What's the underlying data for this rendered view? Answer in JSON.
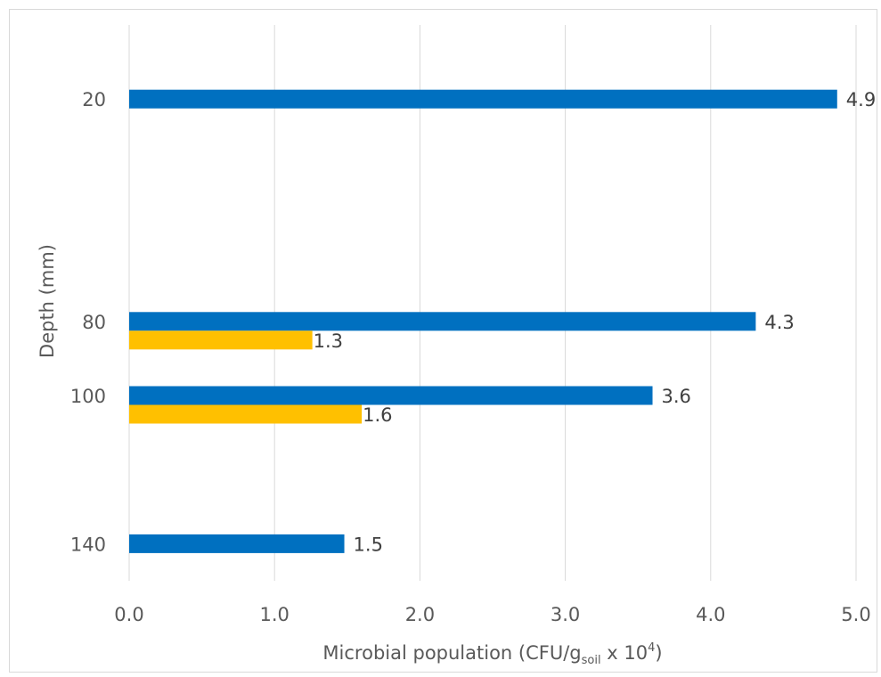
{
  "chart_data": {
    "type": "bar",
    "orientation": "horizontal",
    "x_axis": {
      "label_main": "Microbial population (CFU/g",
      "label_sub": "soil",
      "label_mid": " x 10",
      "label_sup": "4",
      "label_end": ")",
      "range": [
        0,
        5
      ],
      "ticks": [
        "0.0",
        "1.0",
        "2.0",
        "3.0",
        "4.0",
        "5.0"
      ],
      "grid": true
    },
    "y_axis": {
      "label": "Depth (mm)",
      "range": [
        0,
        150
      ],
      "reversed": true,
      "ticks": [
        {
          "value": 20,
          "label": "20"
        },
        {
          "value": 80,
          "label": "80"
        },
        {
          "value": 100,
          "label": "100"
        },
        {
          "value": 140,
          "label": "140"
        }
      ]
    },
    "series": [
      {
        "color": "#0070c0",
        "points": [
          {
            "depth": 20,
            "value": 4.87,
            "label": "4.9"
          },
          {
            "depth": 80,
            "value": 4.31,
            "label": "4.3"
          },
          {
            "depth": 100,
            "value": 3.6,
            "label": "3.6"
          },
          {
            "depth": 140,
            "value": 1.48,
            "label": "1.5"
          }
        ]
      },
      {
        "color": "#ffc000",
        "points": [
          {
            "depth": 80,
            "value": 1.26,
            "label": "1.3"
          },
          {
            "depth": 100,
            "value": 1.6,
            "label": "1.6"
          }
        ]
      }
    ],
    "legend": "none"
  }
}
